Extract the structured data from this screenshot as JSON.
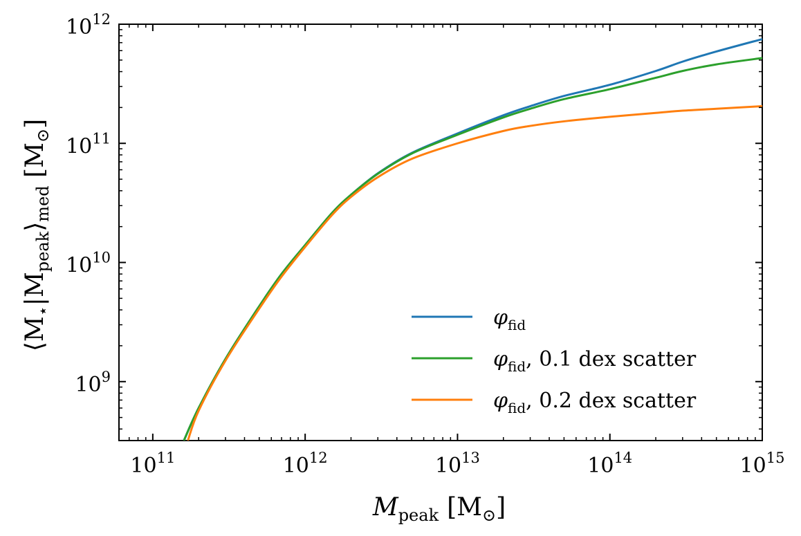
{
  "chart_data": {
    "type": "line",
    "title": "",
    "xlabel": {
      "base": "M",
      "sub": "peak",
      "unit": "[M",
      "unit_sub": "⊙",
      "unit_close": "]"
    },
    "ylabel": {
      "text": "⟨M",
      "sub1": "⋆",
      "mid": "|M",
      "sub2": "peak",
      "close": "⟩",
      "sub3": "med",
      "unit": " [M",
      "unit_sub": "⊙",
      "unit_close": "]"
    },
    "x_scale": "log",
    "y_scale": "log",
    "xlim": [
      60000000000.0,
      1000000000000000.0
    ],
    "ylim": [
      320000000.0,
      1000000000000.0
    ],
    "x_ticks": [
      {
        "value": 100000000000.0,
        "base": "10",
        "exp": "11"
      },
      {
        "value": 1000000000000.0,
        "base": "10",
        "exp": "12"
      },
      {
        "value": 10000000000000.0,
        "base": "10",
        "exp": "13"
      },
      {
        "value": 100000000000000.0,
        "base": "10",
        "exp": "14"
      },
      {
        "value": 1000000000000000.0,
        "base": "10",
        "exp": "15"
      }
    ],
    "y_ticks": [
      {
        "value": 1000000000.0,
        "base": "10",
        "exp": "9"
      },
      {
        "value": 10000000000.0,
        "base": "10",
        "exp": "10"
      },
      {
        "value": 100000000000.0,
        "base": "10",
        "exp": "11"
      },
      {
        "value": 1000000000000.0,
        "base": "10",
        "exp": "12"
      }
    ],
    "grid": false,
    "legend_position": "bottom-right",
    "series": [
      {
        "name": "φfid",
        "legend": {
          "main": "φ",
          "sub": "fid",
          "rest": ""
        },
        "color": "#1f77b4",
        "x": [
          160000000000.0,
          200000000000.0,
          300000000000.0,
          500000000000.0,
          700000000000.0,
          1000000000000.0,
          1500000000000.0,
          2000000000000.0,
          3000000000000.0,
          5000000000000.0,
          10000000000000.0,
          20000000000000.0,
          30000000000000.0,
          50000000000000.0,
          100000000000000.0,
          200000000000000.0,
          300000000000000.0,
          500000000000000.0,
          1000000000000000.0
        ],
        "y": [
          320000000.0,
          600000000.0,
          1550000000.0,
          4300000000.0,
          8000000000.0,
          14000000000.0,
          26000000000.0,
          37000000000.0,
          56000000000.0,
          83000000000.0,
          121000000000.0,
          172000000000.0,
          205000000000.0,
          250000000000.0,
          310000000000.0,
          405000000000.0,
          485000000000.0,
          590000000000.0,
          750000000000.0
        ]
      },
      {
        "name": "φfid, 0.1 dex scatter",
        "legend": {
          "main": "φ",
          "sub": "fid",
          "rest": ",  0.1 dex scatter"
        },
        "color": "#2ca02c",
        "x": [
          160000000000.0,
          200000000000.0,
          300000000000.0,
          500000000000.0,
          700000000000.0,
          1000000000000.0,
          1500000000000.0,
          2000000000000.0,
          3000000000000.0,
          5000000000000.0,
          10000000000000.0,
          20000000000000.0,
          30000000000000.0,
          50000000000000.0,
          100000000000000.0,
          200000000000000.0,
          300000000000000.0,
          500000000000000.0,
          1000000000000000.0
        ],
        "y": [
          320000000.0,
          600000000.0,
          1550000000.0,
          4300000000.0,
          8000000000.0,
          14000000000.0,
          26000000000.0,
          37000000000.0,
          55500000000.0,
          82000000000.0,
          118000000000.0,
          165000000000.0,
          195000000000.0,
          235000000000.0,
          285000000000.0,
          355000000000.0,
          405000000000.0,
          460000000000.0,
          520000000000.0
        ]
      },
      {
        "name": "φfid, 0.2 dex scatter",
        "legend": {
          "main": "φ",
          "sub": "fid",
          "rest": ",  0.2 dex scatter"
        },
        "color": "#ff7f0e",
        "x": [
          170000000000.0,
          200000000000.0,
          300000000000.0,
          500000000000.0,
          700000000000.0,
          1000000000000.0,
          1500000000000.0,
          2000000000000.0,
          3000000000000.0,
          5000000000000.0,
          10000000000000.0,
          20000000000000.0,
          30000000000000.0,
          50000000000000.0,
          100000000000000.0,
          200000000000000.0,
          300000000000000.0,
          500000000000000.0,
          1000000000000000.0
        ],
        "y": [
          320000000.0,
          570000000.0,
          1500000000.0,
          4100000000.0,
          7600000000.0,
          13500000000.0,
          25000000000.0,
          35500000000.0,
          52000000000.0,
          74000000000.0,
          100000000000.0,
          127000000000.0,
          140000000000.0,
          153000000000.0,
          167000000000.0,
          180000000000.0,
          188000000000.0,
          195000000000.0,
          205000000000.0
        ]
      }
    ]
  }
}
